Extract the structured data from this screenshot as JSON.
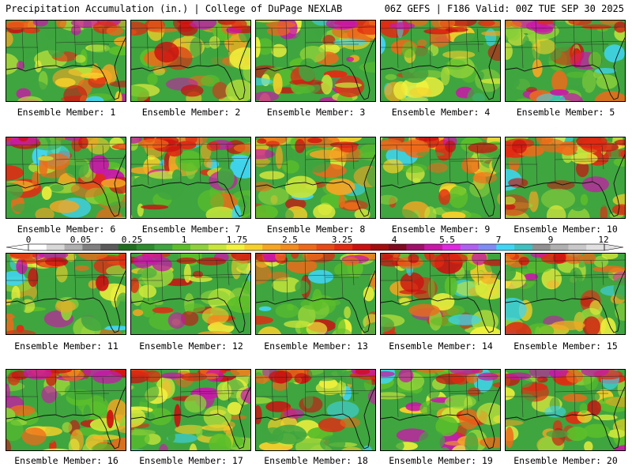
{
  "header": {
    "title_left": "Precipitation Accumulation (in.) | College of DuPage NEXLAB",
    "title_right": "06Z GEFS | F186 Valid: 00Z TUE SEP 30 2025"
  },
  "panels": [
    {
      "label": "Ensemble Member: 1"
    },
    {
      "label": "Ensemble Member: 2"
    },
    {
      "label": "Ensemble Member: 3"
    },
    {
      "label": "Ensemble Member: 4"
    },
    {
      "label": "Ensemble Member: 5"
    },
    {
      "label": "Ensemble Member: 6"
    },
    {
      "label": "Ensemble Member: 7"
    },
    {
      "label": "Ensemble Member: 8"
    },
    {
      "label": "Ensemble Member: 9"
    },
    {
      "label": "Ensemble Member: 10"
    },
    {
      "label": "Ensemble Member: 11"
    },
    {
      "label": "Ensemble Member: 12"
    },
    {
      "label": "Ensemble Member: 13"
    },
    {
      "label": "Ensemble Member: 14"
    },
    {
      "label": "Ensemble Member: 15"
    },
    {
      "label": "Ensemble Member: 16"
    },
    {
      "label": "Ensemble Member: 17"
    },
    {
      "label": "Ensemble Member: 18"
    },
    {
      "label": "Ensemble Member: 19"
    },
    {
      "label": "Ensemble Member: 20"
    }
  ],
  "colorbar": {
    "labels": [
      "0",
      "0.05",
      "0.25",
      "1",
      "1.75",
      "2.5",
      "3.25",
      "4",
      "5.5",
      "7",
      "9",
      "12"
    ],
    "colors": [
      "#ffffff",
      "#d8d8d8",
      "#b0b0b0",
      "#808080",
      "#5a5a5a",
      "#1f6f1f",
      "#2e8b2e",
      "#3fa53f",
      "#5cbf2a",
      "#8fd13a",
      "#c8e63a",
      "#f2f23c",
      "#f7d02a",
      "#f5a623",
      "#f28c1c",
      "#ee6a1a",
      "#e84a16",
      "#e22a12",
      "#cc1010",
      "#a50d0d",
      "#800a20",
      "#a0106a",
      "#c818a8",
      "#e028e0",
      "#b060f0",
      "#7f8cf5",
      "#3fd6f5",
      "#3fc0c0",
      "#909090",
      "#b0b0b0",
      "#c8c8c8",
      "#e0e0e0"
    ],
    "land_colors": [
      "#3fa53f",
      "#5cbf2a",
      "#8fd13a",
      "#c8e63a",
      "#f2f23c",
      "#f7d02a",
      "#f5a623",
      "#ee6a1a",
      "#e22a12",
      "#cc1010",
      "#c818a8",
      "#3fd6f5"
    ]
  }
}
